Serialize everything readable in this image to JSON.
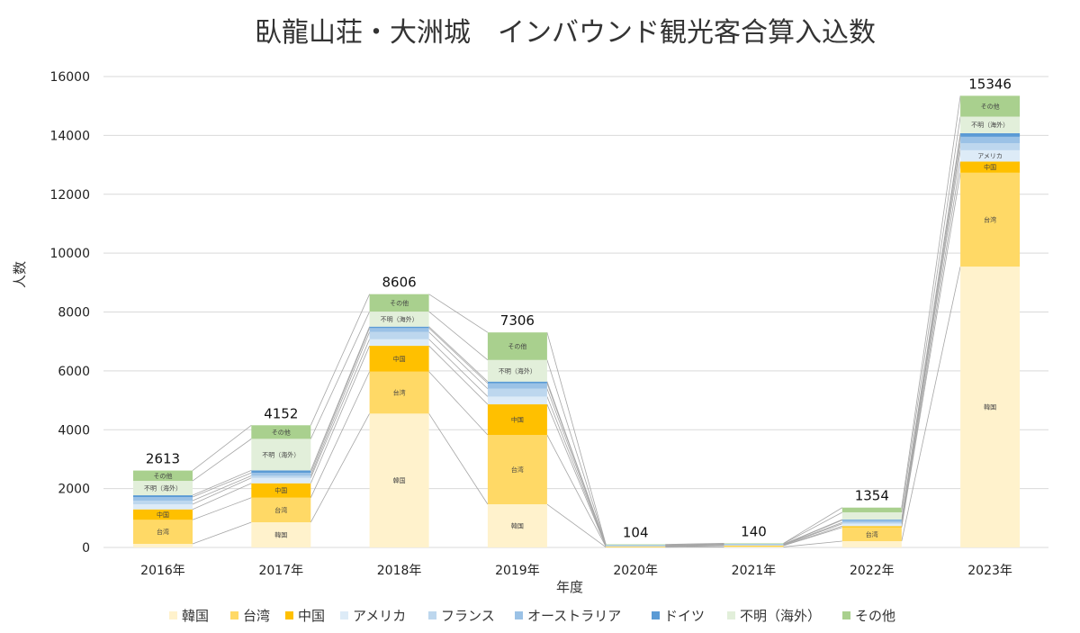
{
  "chart_data": {
    "type": "bar",
    "stacked": true,
    "title": "臥龍山荘・大洲城　インバウンド観光客合算入込数",
    "xlabel": "年度",
    "ylabel": "人数",
    "ylim": [
      0,
      16000
    ],
    "yticks": [
      0,
      2000,
      4000,
      6000,
      8000,
      10000,
      12000,
      14000,
      16000
    ],
    "grid": true,
    "legend_position": "bottom",
    "series_lines": true,
    "categories": [
      "2016年",
      "2017年",
      "2018年",
      "2019年",
      "2020年",
      "2021年",
      "2022年",
      "2023年"
    ],
    "totals": [
      2613,
      4152,
      8606,
      7306,
      104,
      140,
      1354,
      15346
    ],
    "series": [
      {
        "name": "韓国",
        "color": "#FFF2CC",
        "values": [
          122,
          856,
          4548,
          1468,
          10,
          20,
          214,
          9541
        ]
      },
      {
        "name": "台湾",
        "color": "#FFD966",
        "values": [
          817,
          835,
          1425,
          2355,
          20,
          40,
          468,
          3190
        ]
      },
      {
        "name": "中国",
        "color": "#FFC000",
        "values": [
          355,
          489,
          878,
          1040,
          5,
          5,
          43,
          379
        ]
      },
      {
        "name": "アメリカ",
        "color": "#DDEBF7",
        "values": [
          174,
          183,
          223,
          263,
          15,
          15,
          80,
          385
        ]
      },
      {
        "name": "フランス",
        "color": "#BDD7EE",
        "values": [
          122,
          73,
          245,
          266,
          10,
          10,
          43,
          235
        ]
      },
      {
        "name": "オーストラリア",
        "color": "#9BC2E6",
        "values": [
          122,
          101,
          135,
          183,
          10,
          10,
          80,
          223
        ]
      },
      {
        "name": "ドイツ",
        "color": "#5B9BD5",
        "values": [
          61,
          83,
          49,
          61,
          4,
          10,
          21,
          122
        ]
      },
      {
        "name": "不明（海外）",
        "color": "#E2EFDA",
        "values": [
          489,
          1070,
          511,
          734,
          20,
          20,
          245,
          563
        ]
      },
      {
        "name": "その他",
        "color": "#A9D08E",
        "values": [
          351,
          462,
          592,
          936,
          10,
          10,
          160,
          708
        ]
      }
    ]
  }
}
